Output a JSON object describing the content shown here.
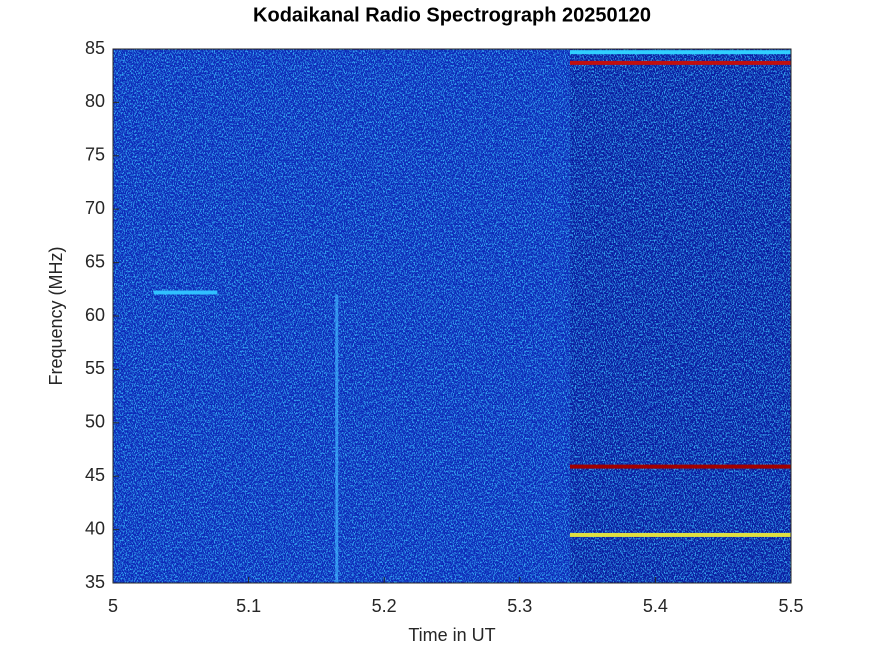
{
  "chart_data": {
    "type": "spectrogram",
    "title": "Kodaikanal Radio Spectrograph  20250120",
    "x_label": "Time in UT",
    "y_label": "Frequency (MHz)",
    "xlim": [
      5,
      5.5
    ],
    "xticks": [
      5,
      5.1,
      5.2,
      5.3,
      5.4,
      5.5
    ],
    "ylim": [
      35,
      85
    ],
    "yticks": [
      35,
      40,
      45,
      50,
      55,
      60,
      65,
      70,
      75,
      80,
      85
    ],
    "regions": [
      {
        "x": [
          5,
          5.337
        ],
        "color": "#0d28b8"
      },
      {
        "x": [
          5.337,
          5.5
        ],
        "color": "#0a1aa0"
      }
    ],
    "bands": [
      {
        "x": [
          5.337,
          5.5
        ],
        "y": 84.7,
        "color": "#30d0ff"
      },
      {
        "x": [
          5.337,
          5.5
        ],
        "y": 83.7,
        "color": "#c01010"
      },
      {
        "x": [
          5.337,
          5.5
        ],
        "y": 45.9,
        "color": "#a00000"
      },
      {
        "x": [
          5.337,
          5.5
        ],
        "y": 39.5,
        "color": "#e0e040"
      },
      {
        "x": [
          5.03,
          5.077
        ],
        "y": 62.2,
        "color": "#30c0ff"
      }
    ],
    "bursts": [
      {
        "x": 5.165,
        "y": [
          35,
          62
        ],
        "color": "#40b0ff"
      }
    ]
  }
}
